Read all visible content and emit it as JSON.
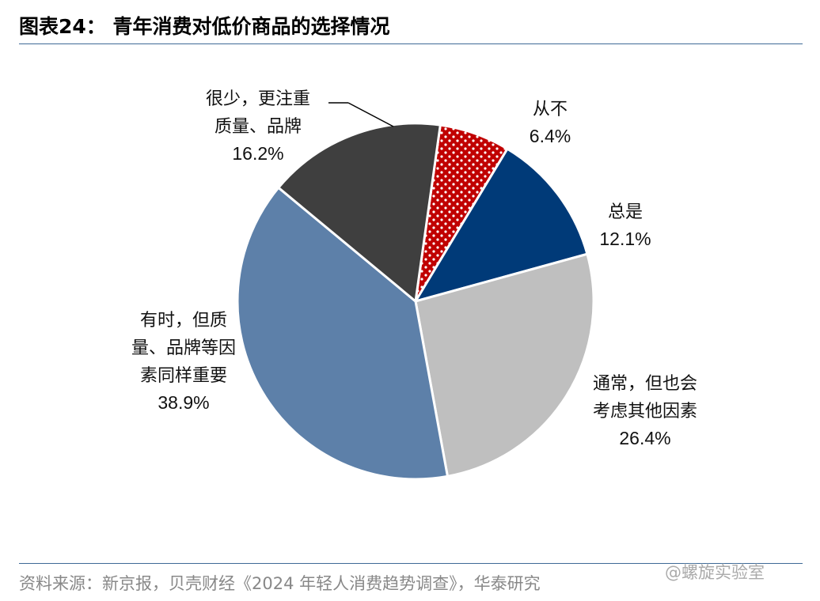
{
  "header": {
    "title": "图表24：  青年消费对低价商品的选择情况"
  },
  "footer": {
    "source": "资料来源：新京报，贝壳财经《2024 年轻人消费趋势调查》，华泰研究",
    "watermark": "@螺旋实验室"
  },
  "colors": {
    "title_rule": "#3f6a96",
    "slice_never": "#c00000",
    "slice_always": "#003a78",
    "slice_usually": "#bfbfbf",
    "slice_sometimes": "#5d80a9",
    "slice_rarely": "#3f3f3f"
  },
  "chart_data": {
    "type": "pie",
    "title": "青年消费对低价商品的选择情况",
    "slices": [
      {
        "name": "从不",
        "label_lines": [
          "从不"
        ],
        "value": 6.4,
        "value_label": "6.4%",
        "color": "#c00000",
        "pattern": "dots"
      },
      {
        "name": "总是",
        "label_lines": [
          "总是"
        ],
        "value": 12.1,
        "value_label": "12.1%",
        "color": "#003a78"
      },
      {
        "name": "通常，但也会考虑其他因素",
        "label_lines": [
          "通常，但也会",
          "考虑其他因素"
        ],
        "value": 26.4,
        "value_label": "26.4%",
        "color": "#bfbfbf"
      },
      {
        "name": "有时，但质量、品牌等因素同样重要",
        "label_lines": [
          "有时，但质",
          "量、品牌等因",
          "素同样重要"
        ],
        "value": 38.9,
        "value_label": "38.9%",
        "color": "#5d80a9"
      },
      {
        "name": "很少，更注重质量、品牌",
        "label_lines": [
          "很少，更注重",
          "质量、品牌"
        ],
        "value": 16.2,
        "value_label": "16.2%",
        "color": "#3f3f3f"
      }
    ],
    "legend": "none"
  }
}
